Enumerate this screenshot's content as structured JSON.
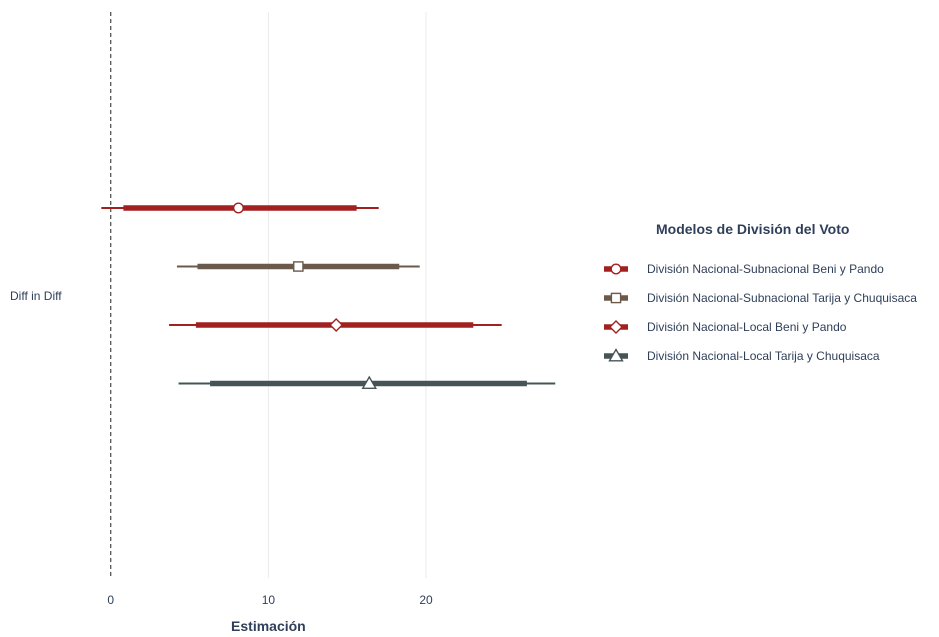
{
  "chart_data": {
    "type": "coefficient-plot",
    "xlabel": "Estimación",
    "xlim": [
      -1,
      28.5
    ],
    "x_ticks": [
      0,
      10,
      20
    ],
    "x_tick_labels": [
      "0",
      "10",
      "20"
    ],
    "reference_line": 0,
    "grid": "vertical-major",
    "categories": [
      "Diff in Diff"
    ],
    "legend": {
      "title": "Modelos de División del Voto",
      "placement": "right"
    },
    "series": [
      {
        "name": "División Nacional-Subnacional Beni y Pando",
        "estimate": 8.1,
        "ci_inner": [
          0.8,
          15.6
        ],
        "ci_outer": [
          -0.6,
          17.0
        ],
        "marker": "circle",
        "color": "#a32020"
      },
      {
        "name": "División Nacional-Subnacional Tarija y Chuquisaca",
        "estimate": 11.9,
        "ci_inner": [
          5.5,
          18.3
        ],
        "ci_outer": [
          4.2,
          19.6
        ],
        "marker": "square",
        "color": "#6b5a4c"
      },
      {
        "name": "División Nacional-Local Beni y Pando",
        "estimate": 14.3,
        "ci_inner": [
          5.4,
          23.0
        ],
        "ci_outer": [
          3.7,
          24.8
        ],
        "marker": "diamond",
        "color": "#a32020"
      },
      {
        "name": "División Nacional-Local Tarija y Chuquisaca",
        "estimate": 16.4,
        "ci_inner": [
          6.3,
          26.4
        ],
        "ci_outer": [
          4.3,
          28.2
        ],
        "marker": "triangle",
        "color": "#475457"
      }
    ]
  }
}
